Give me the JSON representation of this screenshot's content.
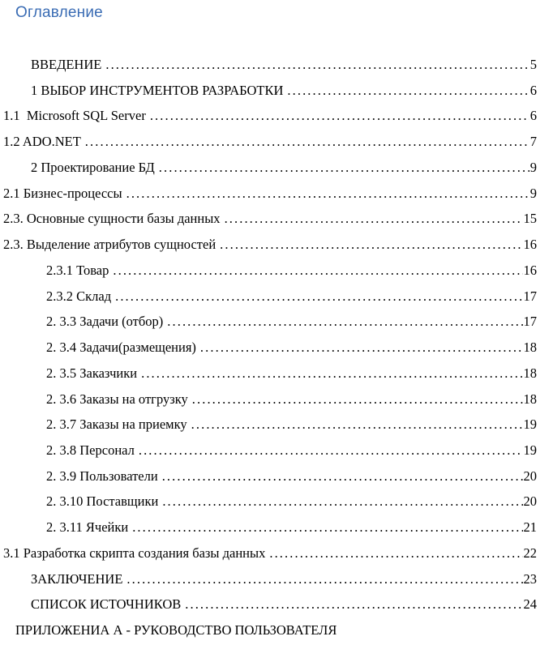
{
  "page": {
    "title": "Оглавление"
  },
  "colors": {
    "heading_blue": "#3a6cb4",
    "text": "#000000"
  },
  "toc": {
    "entries": [
      {
        "label": "ВВЕДЕНИЕ",
        "page": "5",
        "level": 1
      },
      {
        "label": "1 ВЫБОР ИНСТРУМЕНТОВ РАЗРАБОТКИ",
        "page": "6",
        "level": 1
      },
      {
        "label": "1.1  Microsoft SQL Server",
        "page": "6",
        "level": 0
      },
      {
        "label": "1.2 ADO.NET",
        "page": "7",
        "level": 0
      },
      {
        "label": "2 Проектирование БД",
        "page": "9",
        "level": 1
      },
      {
        "label": "2.1 Бизнес-процессы",
        "page": "9",
        "level": 0
      },
      {
        "label": "2.3. Основные сущности базы данных",
        "page": "15",
        "level": 0
      },
      {
        "label": "2.3. Выделение атрибутов сущностей",
        "page": "16",
        "level": 0
      },
      {
        "label": "2.3.1 Товар",
        "page": "16",
        "level": 2
      },
      {
        "label": "2.3.2 Склад",
        "page": "17",
        "level": 2
      },
      {
        "label": "2. 3.3 Задачи (отбор)",
        "page": "17",
        "level": 2
      },
      {
        "label": "2. 3.4 Задачи(размещения)",
        "page": "18",
        "level": 2
      },
      {
        "label": "2. 3.5 Заказчики",
        "page": "18",
        "level": 2
      },
      {
        "label": "2. 3.6 Заказы на отгрузку",
        "page": "18",
        "level": 2
      },
      {
        "label": "2. 3.7 Заказы на приемку",
        "page": "19",
        "level": 2
      },
      {
        "label": "2. 3.8 Персонал",
        "page": "19",
        "level": 2
      },
      {
        "label": "2. 3.9 Пользователи",
        "page": "20",
        "level": 2
      },
      {
        "label": "2. 3.10 Поставщики",
        "page": "20",
        "level": 2
      },
      {
        "label": "2. 3.11 Ячейки",
        "page": "21",
        "level": 2
      },
      {
        "label": "3.1 Разработка скрипта создания базы данных",
        "page": "22",
        "level": 0
      },
      {
        "label": "ЗАКЛЮЧЕНИЕ",
        "page": "23",
        "level": 1
      },
      {
        "label": "СПИСОК ИСТОЧНИКОВ",
        "page": "24",
        "level": 1
      },
      {
        "label": "ПРИЛОЖЕНИА А - РУКОВОДСТВО ПОЛЬЗОВАТЕЛЯ",
        "page": null,
        "level": 3
      }
    ]
  }
}
